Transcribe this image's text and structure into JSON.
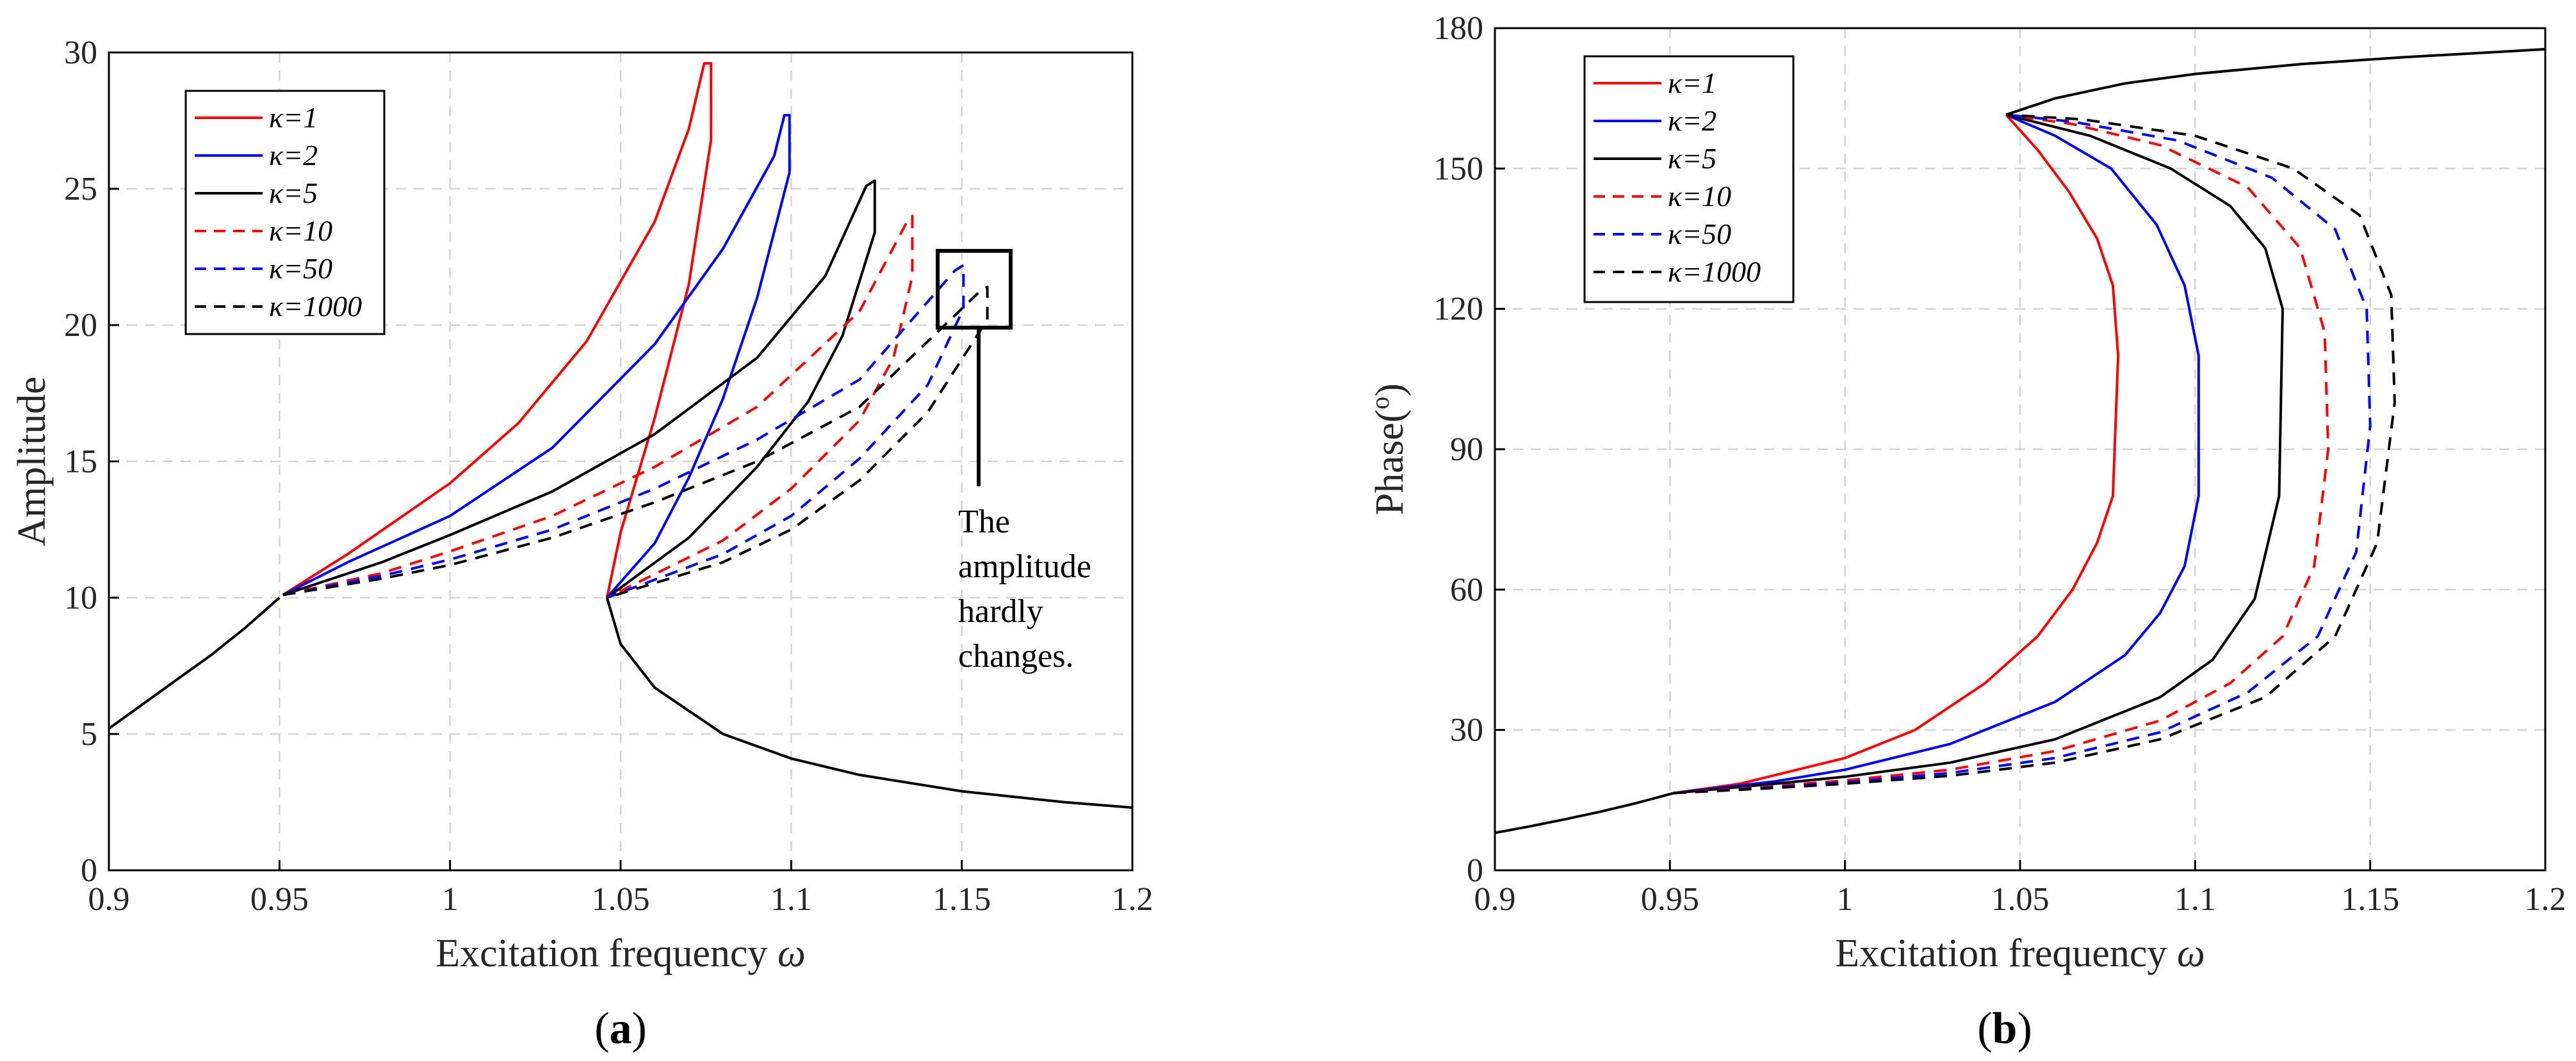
{
  "colors": {
    "red": "#ff0000",
    "blue": "#0000ff",
    "black": "#000000"
  },
  "legend": [
    {
      "label": "κ=1",
      "color": "#ff0000",
      "dash": false
    },
    {
      "label": "κ=2",
      "color": "#0000ff",
      "dash": false
    },
    {
      "label": "κ=5",
      "color": "#000000",
      "dash": false
    },
    {
      "label": "κ=10",
      "color": "#ff0000",
      "dash": true
    },
    {
      "label": "κ=50",
      "color": "#0000ff",
      "dash": true
    },
    {
      "label": "κ=1000",
      "color": "#000000",
      "dash": true
    }
  ],
  "chart_data": [
    {
      "type": "line",
      "panel_label_pre": "(",
      "panel_letter": "a",
      "panel_label_post": ")",
      "xlabel": "Excitation frequency",
      "xlabel_symbol": "ω",
      "ylabel": "Amplitude",
      "xlim": [
        0.9,
        1.2
      ],
      "ylim": [
        0,
        30
      ],
      "xticks": [
        0.9,
        0.95,
        1,
        1.05,
        1.1,
        1.15,
        1.2
      ],
      "xtick_labels": [
        "0.9",
        "0.95",
        "1",
        "1.05",
        "1.1",
        "1.15",
        "1.2"
      ],
      "yticks": [
        0,
        5,
        10,
        15,
        20,
        25,
        30
      ],
      "ytick_labels": [
        "0",
        "5",
        "10",
        "15",
        "20",
        "25",
        "30"
      ],
      "annotation_lines": [
        "The",
        "amplitude",
        "hardly",
        "changes."
      ],
      "common_low_branch": {
        "x": [
          0.9,
          0.91,
          0.92,
          0.93,
          0.94,
          0.95
        ],
        "y": [
          5.2,
          6.1,
          7.0,
          7.9,
          8.9,
          10.0
        ]
      },
      "common_high_branch": {
        "x": [
          1.046,
          1.05,
          1.06,
          1.08,
          1.1,
          1.12,
          1.15,
          1.18,
          1.2
        ],
        "y": [
          10.0,
          8.3,
          6.7,
          5.0,
          4.1,
          3.5,
          2.9,
          2.5,
          2.3
        ]
      },
      "series": [
        {
          "name": "κ=1",
          "upper": {
            "x": [
              0.951,
              0.97,
              1.0,
              1.02,
              1.04,
              1.06,
              1.07,
              1.0745
            ],
            "y": [
              10.1,
              11.6,
              14.2,
              16.4,
              19.4,
              23.8,
              27.2,
              29.6
            ]
          },
          "peak_x": 1.0765,
          "peak_y": 29.6,
          "lower": {
            "x": [
              1.046,
              1.05,
              1.06,
              1.07,
              1.0765
            ],
            "y": [
              10.0,
              12.4,
              16.6,
              21.5,
              26.8
            ]
          }
        },
        {
          "name": "κ=2",
          "upper": {
            "x": [
              0.951,
              0.97,
              1.0,
              1.03,
              1.06,
              1.08,
              1.095,
              1.098
            ],
            "y": [
              10.1,
              11.3,
              13.0,
              15.5,
              19.3,
              22.8,
              26.2,
              27.7
            ]
          },
          "peak_x": 1.0995,
          "peak_y": 27.7,
          "lower": {
            "x": [
              1.046,
              1.06,
              1.07,
              1.08,
              1.09,
              1.0995
            ],
            "y": [
              10.0,
              12.0,
              14.4,
              17.3,
              21.0,
              25.6
            ]
          }
        },
        {
          "name": "κ=5",
          "upper": {
            "x": [
              0.951,
              0.98,
              1.0,
              1.03,
              1.06,
              1.09,
              1.11,
              1.122
            ],
            "y": [
              10.1,
              11.3,
              12.3,
              13.9,
              16.0,
              18.8,
              21.8,
              25.1
            ]
          },
          "peak_x": 1.1245,
          "peak_y": 25.3,
          "lower": {
            "x": [
              1.046,
              1.07,
              1.09,
              1.105,
              1.115,
              1.1245
            ],
            "y": [
              10.0,
              12.2,
              14.8,
              17.2,
              19.6,
              23.4
            ]
          }
        },
        {
          "name": "κ=10",
          "upper": {
            "x": [
              0.951,
              0.98,
              1.0,
              1.03,
              1.06,
              1.09,
              1.12,
              1.134
            ],
            "y": [
              10.1,
              10.9,
              11.7,
              13.0,
              14.8,
              17.0,
              20.5,
              23.8
            ]
          },
          "peak_x": 1.1355,
          "peak_y": 24.0,
          "lower": {
            "x": [
              1.046,
              1.08,
              1.1,
              1.12,
              1.13,
              1.1355
            ],
            "y": [
              10.0,
              12.1,
              14.0,
              16.5,
              18.8,
              21.8
            ]
          }
        },
        {
          "name": "κ=50",
          "upper": {
            "x": [
              0.951,
              0.98,
              1.0,
              1.03,
              1.06,
              1.09,
              1.12,
              1.148
            ],
            "y": [
              10.1,
              10.8,
              11.4,
              12.5,
              14.0,
              15.8,
              18.0,
              22.0
            ]
          },
          "peak_x": 1.1505,
          "peak_y": 22.2,
          "lower": {
            "x": [
              1.046,
              1.08,
              1.1,
              1.12,
              1.14,
              1.1505
            ],
            "y": [
              10.0,
              11.6,
              13.0,
              15.1,
              17.8,
              20.6
            ]
          }
        },
        {
          "name": "κ=1000",
          "upper": {
            "x": [
              0.951,
              0.98,
              1.0,
              1.03,
              1.06,
              1.09,
              1.12,
              1.155
            ],
            "y": [
              10.1,
              10.7,
              11.2,
              12.2,
              13.5,
              15.0,
              17.0,
              21.2
            ]
          },
          "peak_x": 1.1575,
          "peak_y": 21.4,
          "lower": {
            "x": [
              1.046,
              1.08,
              1.1,
              1.12,
              1.14,
              1.1575
            ],
            "y": [
              10.0,
              11.3,
              12.5,
              14.3,
              16.8,
              20.2
            ]
          }
        }
      ]
    },
    {
      "type": "line",
      "panel_label_pre": "(",
      "panel_letter": "b",
      "panel_label_post": ")",
      "xlabel": "Excitation frequency",
      "xlabel_symbol": "ω",
      "ylabel": "Phase(",
      "ylabel_sup": "o",
      "ylabel_post": ")",
      "xlim": [
        0.9,
        1.2
      ],
      "ylim": [
        0,
        180
      ],
      "xticks": [
        0.9,
        0.95,
        1,
        1.05,
        1.1,
        1.15,
        1.2
      ],
      "xtick_labels": [
        "0.9",
        "0.95",
        "1",
        "1.05",
        "1.1",
        "1.15",
        "1.2"
      ],
      "yticks": [
        0,
        30,
        60,
        90,
        120,
        150,
        180
      ],
      "ytick_labels": [
        "0",
        "30",
        "60",
        "90",
        "120",
        "150",
        "180"
      ],
      "common_low_branch": {
        "x": [
          0.9,
          0.91,
          0.92,
          0.93,
          0.94,
          0.951
        ],
        "y": [
          8.0,
          9.4,
          10.9,
          12.5,
          14.3,
          16.5
        ]
      },
      "common_high_branch": {
        "x": [
          1.046,
          1.06,
          1.08,
          1.1,
          1.13,
          1.16,
          1.2
        ],
        "y": [
          161.5,
          165.0,
          168.2,
          170.2,
          172.3,
          173.8,
          175.5
        ]
      },
      "series": [
        {
          "name": "κ=1",
          "x": [
            0.951,
            0.97,
            1.0,
            1.02,
            1.04,
            1.055,
            1.065,
            1.072,
            1.0765,
            1.078,
            1.0765,
            1.072,
            1.064,
            1.055,
            1.046
          ],
          "y": [
            16.5,
            18.5,
            24.0,
            30.0,
            40.0,
            50.0,
            60.0,
            70.0,
            80.0,
            110.0,
            125.0,
            135.0,
            145.0,
            154.0,
            161.5
          ]
        },
        {
          "name": "κ=2",
          "x": [
            0.951,
            0.98,
            1.0,
            1.03,
            1.06,
            1.08,
            1.09,
            1.097,
            1.101,
            1.101,
            1.097,
            1.089,
            1.076,
            1.06,
            1.046
          ],
          "y": [
            16.5,
            19.0,
            21.5,
            27.0,
            36.0,
            46.0,
            55.0,
            65.0,
            80.0,
            110.0,
            125.0,
            138.0,
            150.0,
            157.0,
            161.5
          ]
        },
        {
          "name": "κ=5",
          "x": [
            0.951,
            0.98,
            1.0,
            1.03,
            1.06,
            1.09,
            1.105,
            1.117,
            1.124,
            1.125,
            1.12,
            1.11,
            1.093,
            1.07,
            1.046
          ],
          "y": [
            16.5,
            18.5,
            20.0,
            23.0,
            28.0,
            37.0,
            45.0,
            58.0,
            80.0,
            120.0,
            133.0,
            142.0,
            150.0,
            157.0,
            161.5
          ]
        },
        {
          "name": "κ=10",
          "x": [
            0.951,
            0.98,
            1.0,
            1.03,
            1.06,
            1.09,
            1.11,
            1.125,
            1.134,
            1.138,
            1.137,
            1.13,
            1.115,
            1.09,
            1.065,
            1.046
          ],
          "y": [
            16.5,
            18.0,
            19.2,
            21.5,
            25.5,
            32.0,
            40.0,
            50.0,
            65.0,
            90.0,
            115.0,
            133.0,
            146.0,
            155.0,
            159.5,
            161.5
          ]
        },
        {
          "name": "κ=50",
          "x": [
            0.951,
            0.98,
            1.0,
            1.03,
            1.06,
            1.09,
            1.115,
            1.135,
            1.146,
            1.15,
            1.149,
            1.14,
            1.122,
            1.095,
            1.065,
            1.046
          ],
          "y": [
            16.5,
            17.8,
            18.8,
            20.8,
            24.0,
            29.5,
            38.0,
            50.0,
            68.0,
            95.0,
            120.0,
            137.0,
            148.0,
            156.0,
            160.0,
            161.5
          ]
        },
        {
          "name": "κ=1000",
          "x": [
            0.951,
            0.98,
            1.0,
            1.03,
            1.06,
            1.09,
            1.12,
            1.14,
            1.152,
            1.157,
            1.156,
            1.147,
            1.128,
            1.1,
            1.068,
            1.046
          ],
          "y": [
            16.5,
            17.6,
            18.5,
            20.2,
            23.0,
            28.0,
            37.0,
            50.0,
            70.0,
            100.0,
            123.0,
            140.0,
            150.0,
            157.0,
            160.5,
            161.5
          ]
        }
      ]
    }
  ]
}
